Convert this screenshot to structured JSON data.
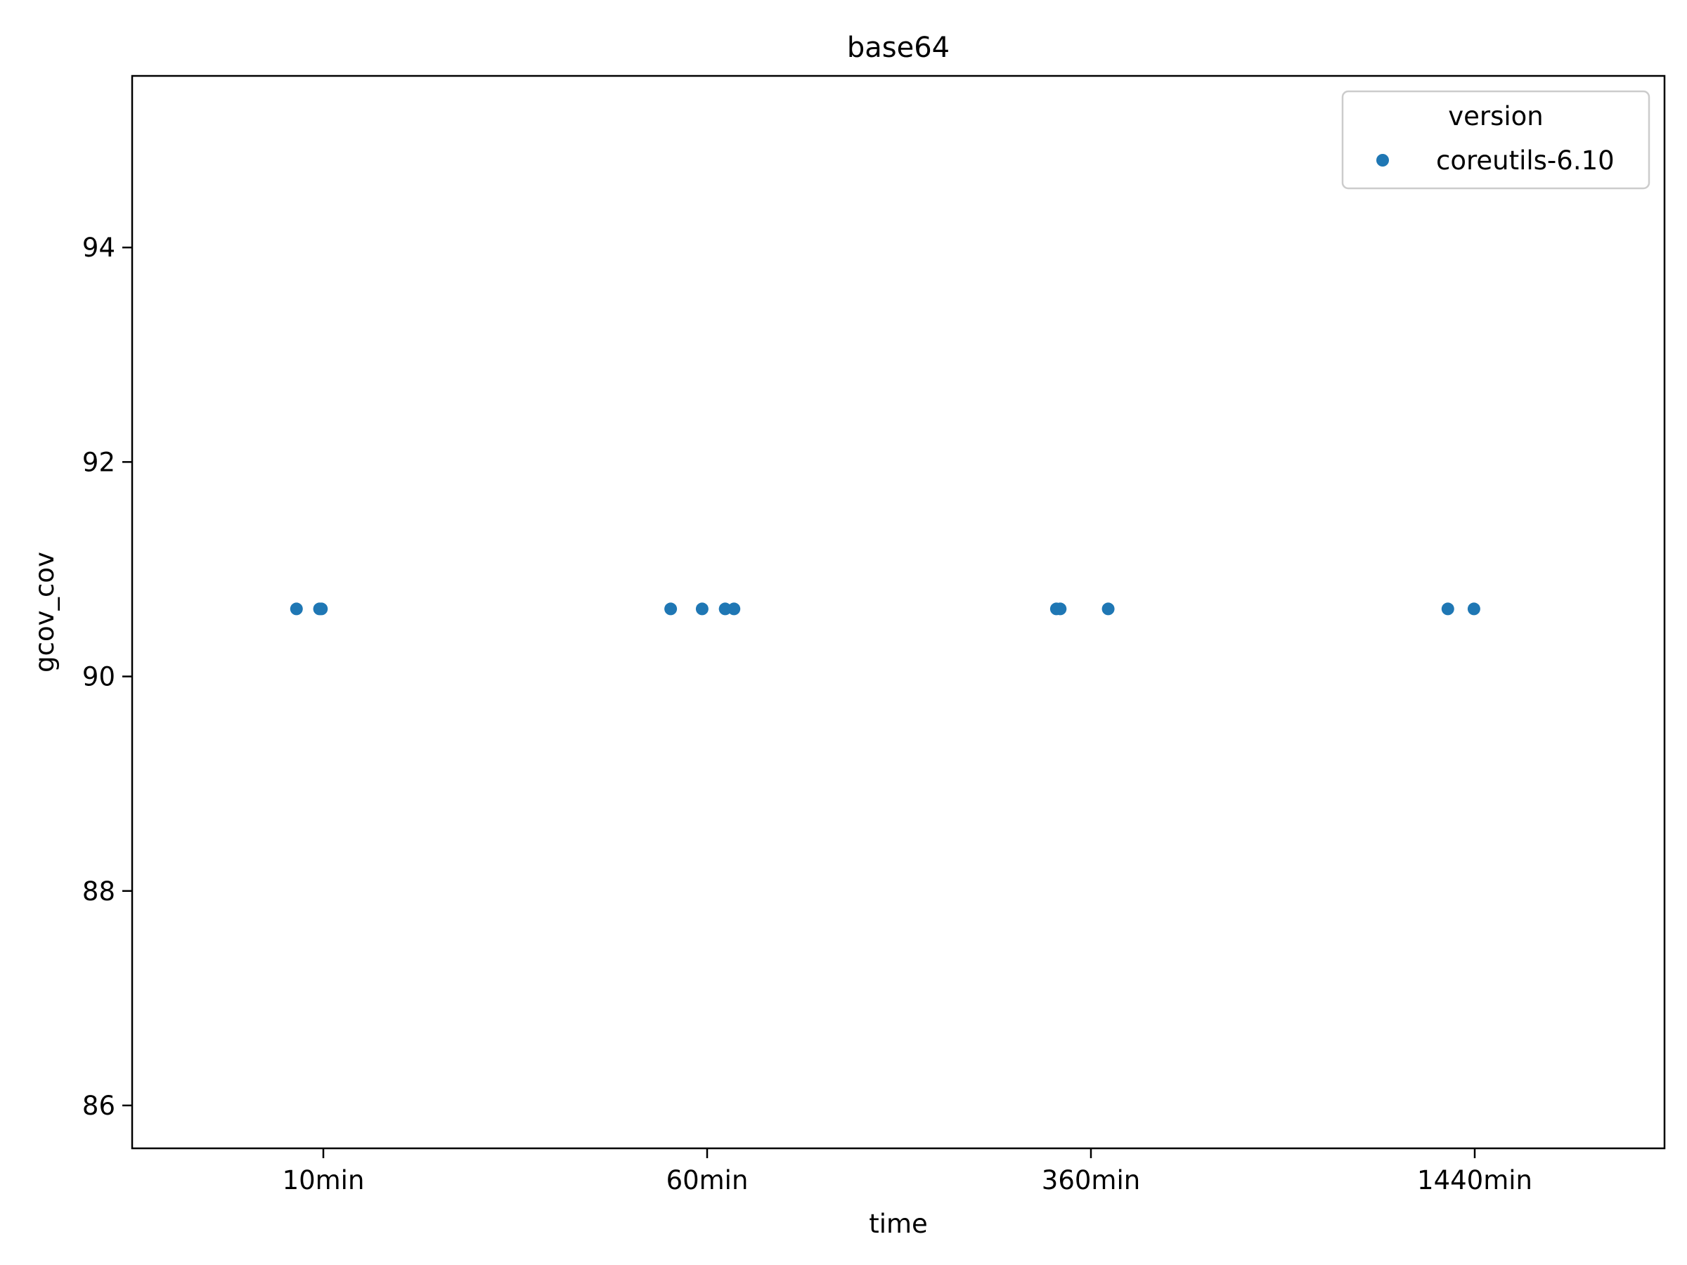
{
  "chart_data": {
    "type": "scatter",
    "title": "base64",
    "xlabel": "time",
    "ylabel": "gcov_cov",
    "x_categories": [
      "10min",
      "60min",
      "360min",
      "1440min"
    ],
    "yticks": [
      86,
      88,
      90,
      92,
      94
    ],
    "ylim": [
      85.6,
      95.6
    ],
    "grid": false,
    "legend": {
      "title": "version",
      "placement": "top-right"
    },
    "series": [
      {
        "name": "coreutils-6.10",
        "color": "#1f77b4",
        "points": [
          {
            "x": "10min",
            "jitter": -0.07,
            "y": 90.63
          },
          {
            "x": "10min",
            "jitter": -0.01,
            "y": 90.63
          },
          {
            "x": "10min",
            "jitter": -0.005,
            "y": 90.63
          },
          {
            "x": "60min",
            "jitter": -0.095,
            "y": 90.63
          },
          {
            "x": "60min",
            "jitter": -0.013,
            "y": 90.63
          },
          {
            "x": "60min",
            "jitter": 0.047,
            "y": 90.63
          },
          {
            "x": "60min",
            "jitter": 0.07,
            "y": 90.63
          },
          {
            "x": "360min",
            "jitter": -0.09,
            "y": 90.63
          },
          {
            "x": "360min",
            "jitter": -0.08,
            "y": 90.63
          },
          {
            "x": "360min",
            "jitter": 0.045,
            "y": 90.63
          },
          {
            "x": "1440min",
            "jitter": -0.07,
            "y": 90.63
          },
          {
            "x": "1440min",
            "jitter": -0.002,
            "y": 90.63
          }
        ]
      }
    ]
  }
}
